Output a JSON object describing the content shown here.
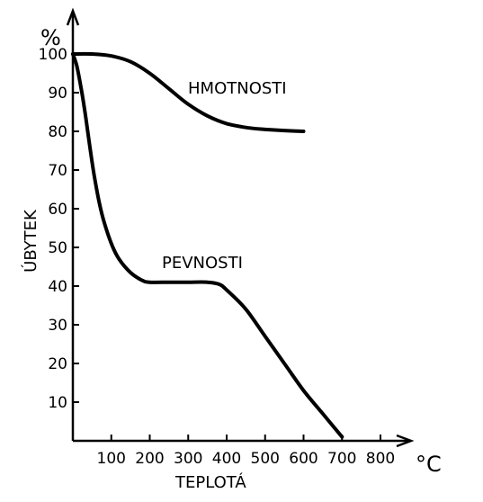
{
  "chart_data": {
    "type": "line",
    "ylabel": "ÚBYTEK",
    "yunit": "%",
    "xlabel": "TEPLOTÁ",
    "xunit": "°C",
    "xlim": [
      0,
      800
    ],
    "ylim": [
      0,
      100
    ],
    "xticks": [
      100,
      200,
      300,
      400,
      500,
      600,
      700,
      800
    ],
    "yticks": [
      10,
      20,
      30,
      40,
      50,
      60,
      70,
      80,
      90,
      100
    ],
    "grid": false,
    "series": [
      {
        "name": "HMOTNOSTI",
        "x": [
          0,
          50,
          100,
          150,
          200,
          250,
          300,
          350,
          400,
          450,
          500,
          550,
          600
        ],
        "y": [
          100,
          100,
          99.5,
          98,
          95,
          91,
          87,
          84,
          82,
          81,
          80.5,
          80.2,
          80
        ]
      },
      {
        "name": "PEVNOSTI",
        "x": [
          0,
          10,
          20,
          30,
          40,
          50,
          60,
          70,
          80,
          100,
          120,
          150,
          180,
          200,
          250,
          300,
          350,
          380,
          400,
          450,
          500,
          550,
          600,
          650,
          700
        ],
        "y": [
          100,
          97,
          92,
          86,
          79,
          72,
          66,
          61,
          57,
          51,
          47,
          43.5,
          41.5,
          41,
          41,
          41,
          41,
          40.5,
          39,
          34,
          27,
          20,
          13,
          7,
          1
        ]
      }
    ]
  }
}
